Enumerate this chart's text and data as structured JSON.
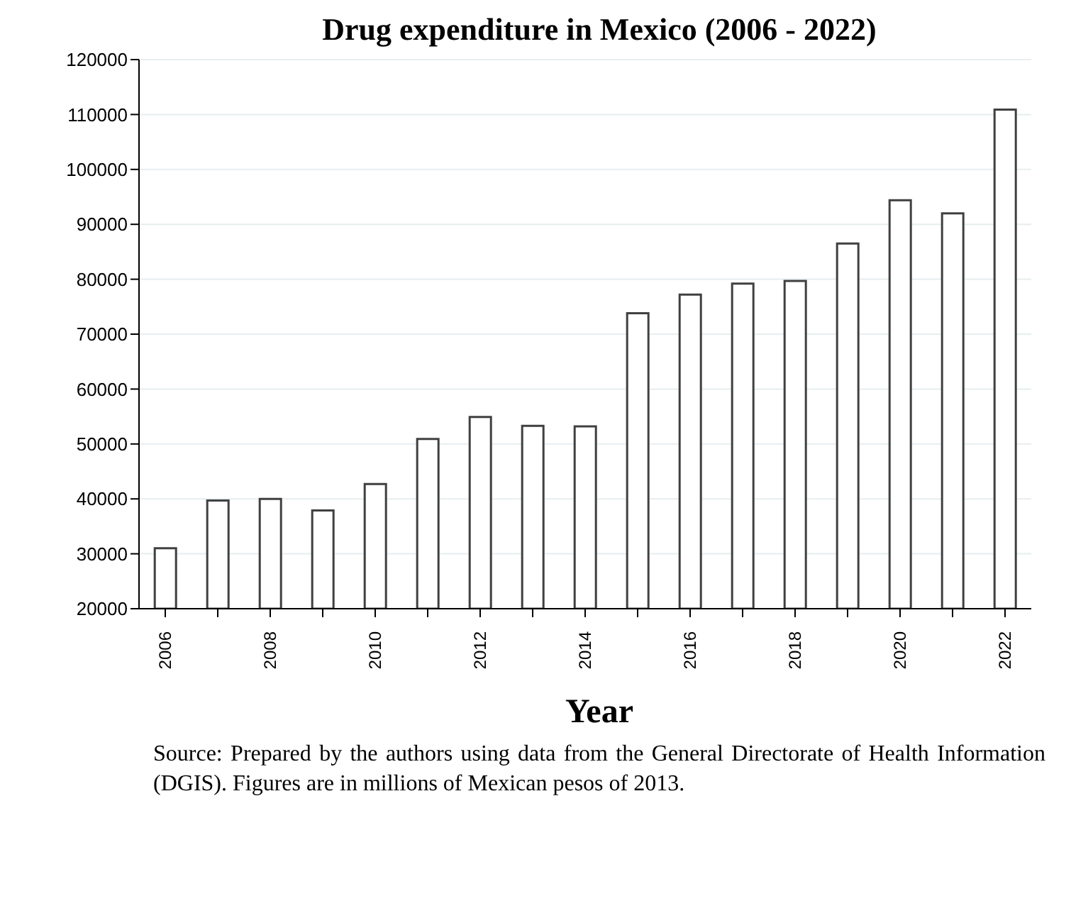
{
  "chart_data": {
    "type": "bar",
    "title": "Drug expenditure in Mexico (2006 - 2022)",
    "xlabel": "Year",
    "categories": [
      "2006",
      null,
      "2008",
      null,
      "2010",
      null,
      "2012",
      null,
      "2014",
      null,
      "2016",
      null,
      "2018",
      null,
      "2020",
      null,
      "2022"
    ],
    "values": [
      31000,
      39700,
      40000,
      37900,
      42700,
      50900,
      54900,
      53300,
      53200,
      73800,
      77200,
      79200,
      79700,
      86500,
      94400,
      92000,
      110900
    ],
    "color": "#ffffff",
    "ylim": [
      20000,
      120000
    ],
    "yticks": [
      20000,
      30000,
      40000,
      50000,
      60000,
      70000,
      80000,
      90000,
      100000,
      110000,
      120000
    ],
    "grid": "y",
    "legend": false,
    "annotations": [
      "Source: Prepared by the authors using data from the General Directorate of Health Information (DGIS). Figures are in millions of Mexican pesos of 2013."
    ]
  }
}
